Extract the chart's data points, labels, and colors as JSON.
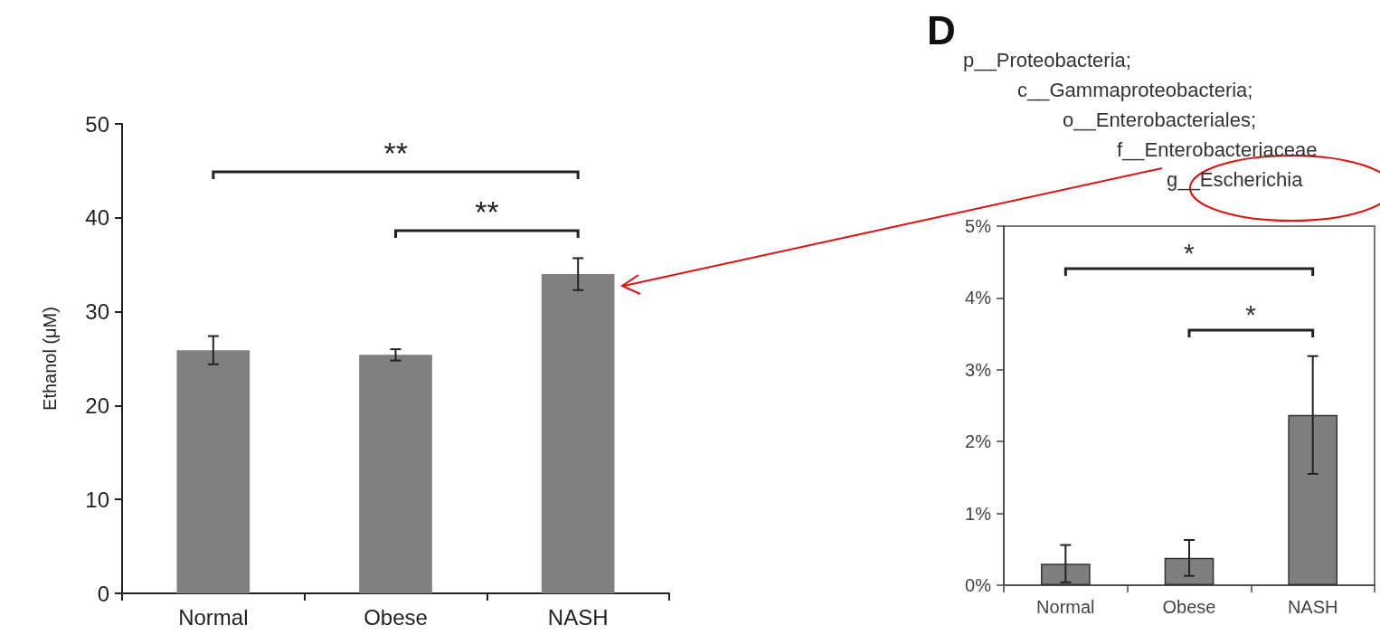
{
  "chart_data": [
    {
      "type": "bar",
      "ylabel": "Ethanol (μM)",
      "categories": [
        "Normal",
        "Obese",
        "NASH"
      ],
      "values": [
        25.9,
        25.4,
        34.0
      ],
      "errors": [
        1.5,
        0.6,
        1.7
      ],
      "color": "#808080",
      "ylim": [
        0,
        50
      ],
      "yticks": [
        0,
        10,
        20,
        30,
        40,
        50
      ],
      "grid": false,
      "annotations": [
        "**",
        "**"
      ]
    },
    {
      "type": "bar",
      "title": "D",
      "categories": [
        "Normal",
        "Obese",
        "NASH"
      ],
      "values": [
        0.3,
        0.38,
        2.37
      ],
      "errors": [
        0.26,
        0.25,
        0.82
      ],
      "color": "#7f7f7f",
      "ylim": [
        0,
        5
      ],
      "yticks": [
        {
          "value": 0,
          "label": "0%"
        },
        {
          "value": 1,
          "label": "1%"
        },
        {
          "value": 2,
          "label": "2%"
        },
        {
          "value": 3,
          "label": "3%"
        },
        {
          "value": 4,
          "label": "4%"
        },
        {
          "value": 5,
          "label": "5%"
        }
      ],
      "grid": false,
      "annotations": [
        "p__Proteobacteria;",
        "c__Gammaproteobacteria;",
        "o__Enterobacteriales;",
        "f__Enterobacteriaceae",
        "g__Escherichia",
        "*",
        "*"
      ]
    }
  ]
}
